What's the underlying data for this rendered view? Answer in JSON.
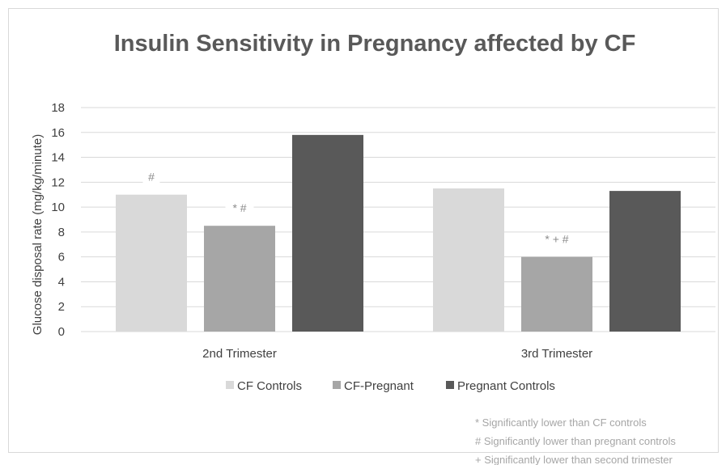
{
  "chart_data": {
    "type": "bar",
    "title": "Insulin Sensitivity in Pregnancy affected by CF",
    "xlabel": "",
    "ylabel": "Glucose disposal rate (mg/kg/minute)",
    "ylim": [
      0,
      18
    ],
    "yticks": [
      "0",
      "2",
      "4",
      "6",
      "8",
      "10",
      "12",
      "14",
      "16",
      "18"
    ],
    "grid": true,
    "legend_position": "bottom",
    "categories": [
      "2nd Trimester",
      "3rd Trimester"
    ],
    "series": [
      {
        "name": "CF Controls",
        "color": "#d9d9d9",
        "values": [
          11.0,
          11.5
        ],
        "labels": [
          "#",
          ""
        ]
      },
      {
        "name": "CF-Pregnant",
        "color": "#a6a6a6",
        "values": [
          8.5,
          6.0
        ],
        "labels": [
          "* #",
          "* + #"
        ]
      },
      {
        "name": "Pregnant Controls",
        "color": "#595959",
        "values": [
          15.8,
          11.3
        ],
        "labels": [
          "",
          ""
        ]
      }
    ],
    "footnotes": [
      "* Significantly lower than CF controls",
      "# Significantly lower than pregnant controls",
      "+ Significantly lower than second trimester"
    ]
  }
}
